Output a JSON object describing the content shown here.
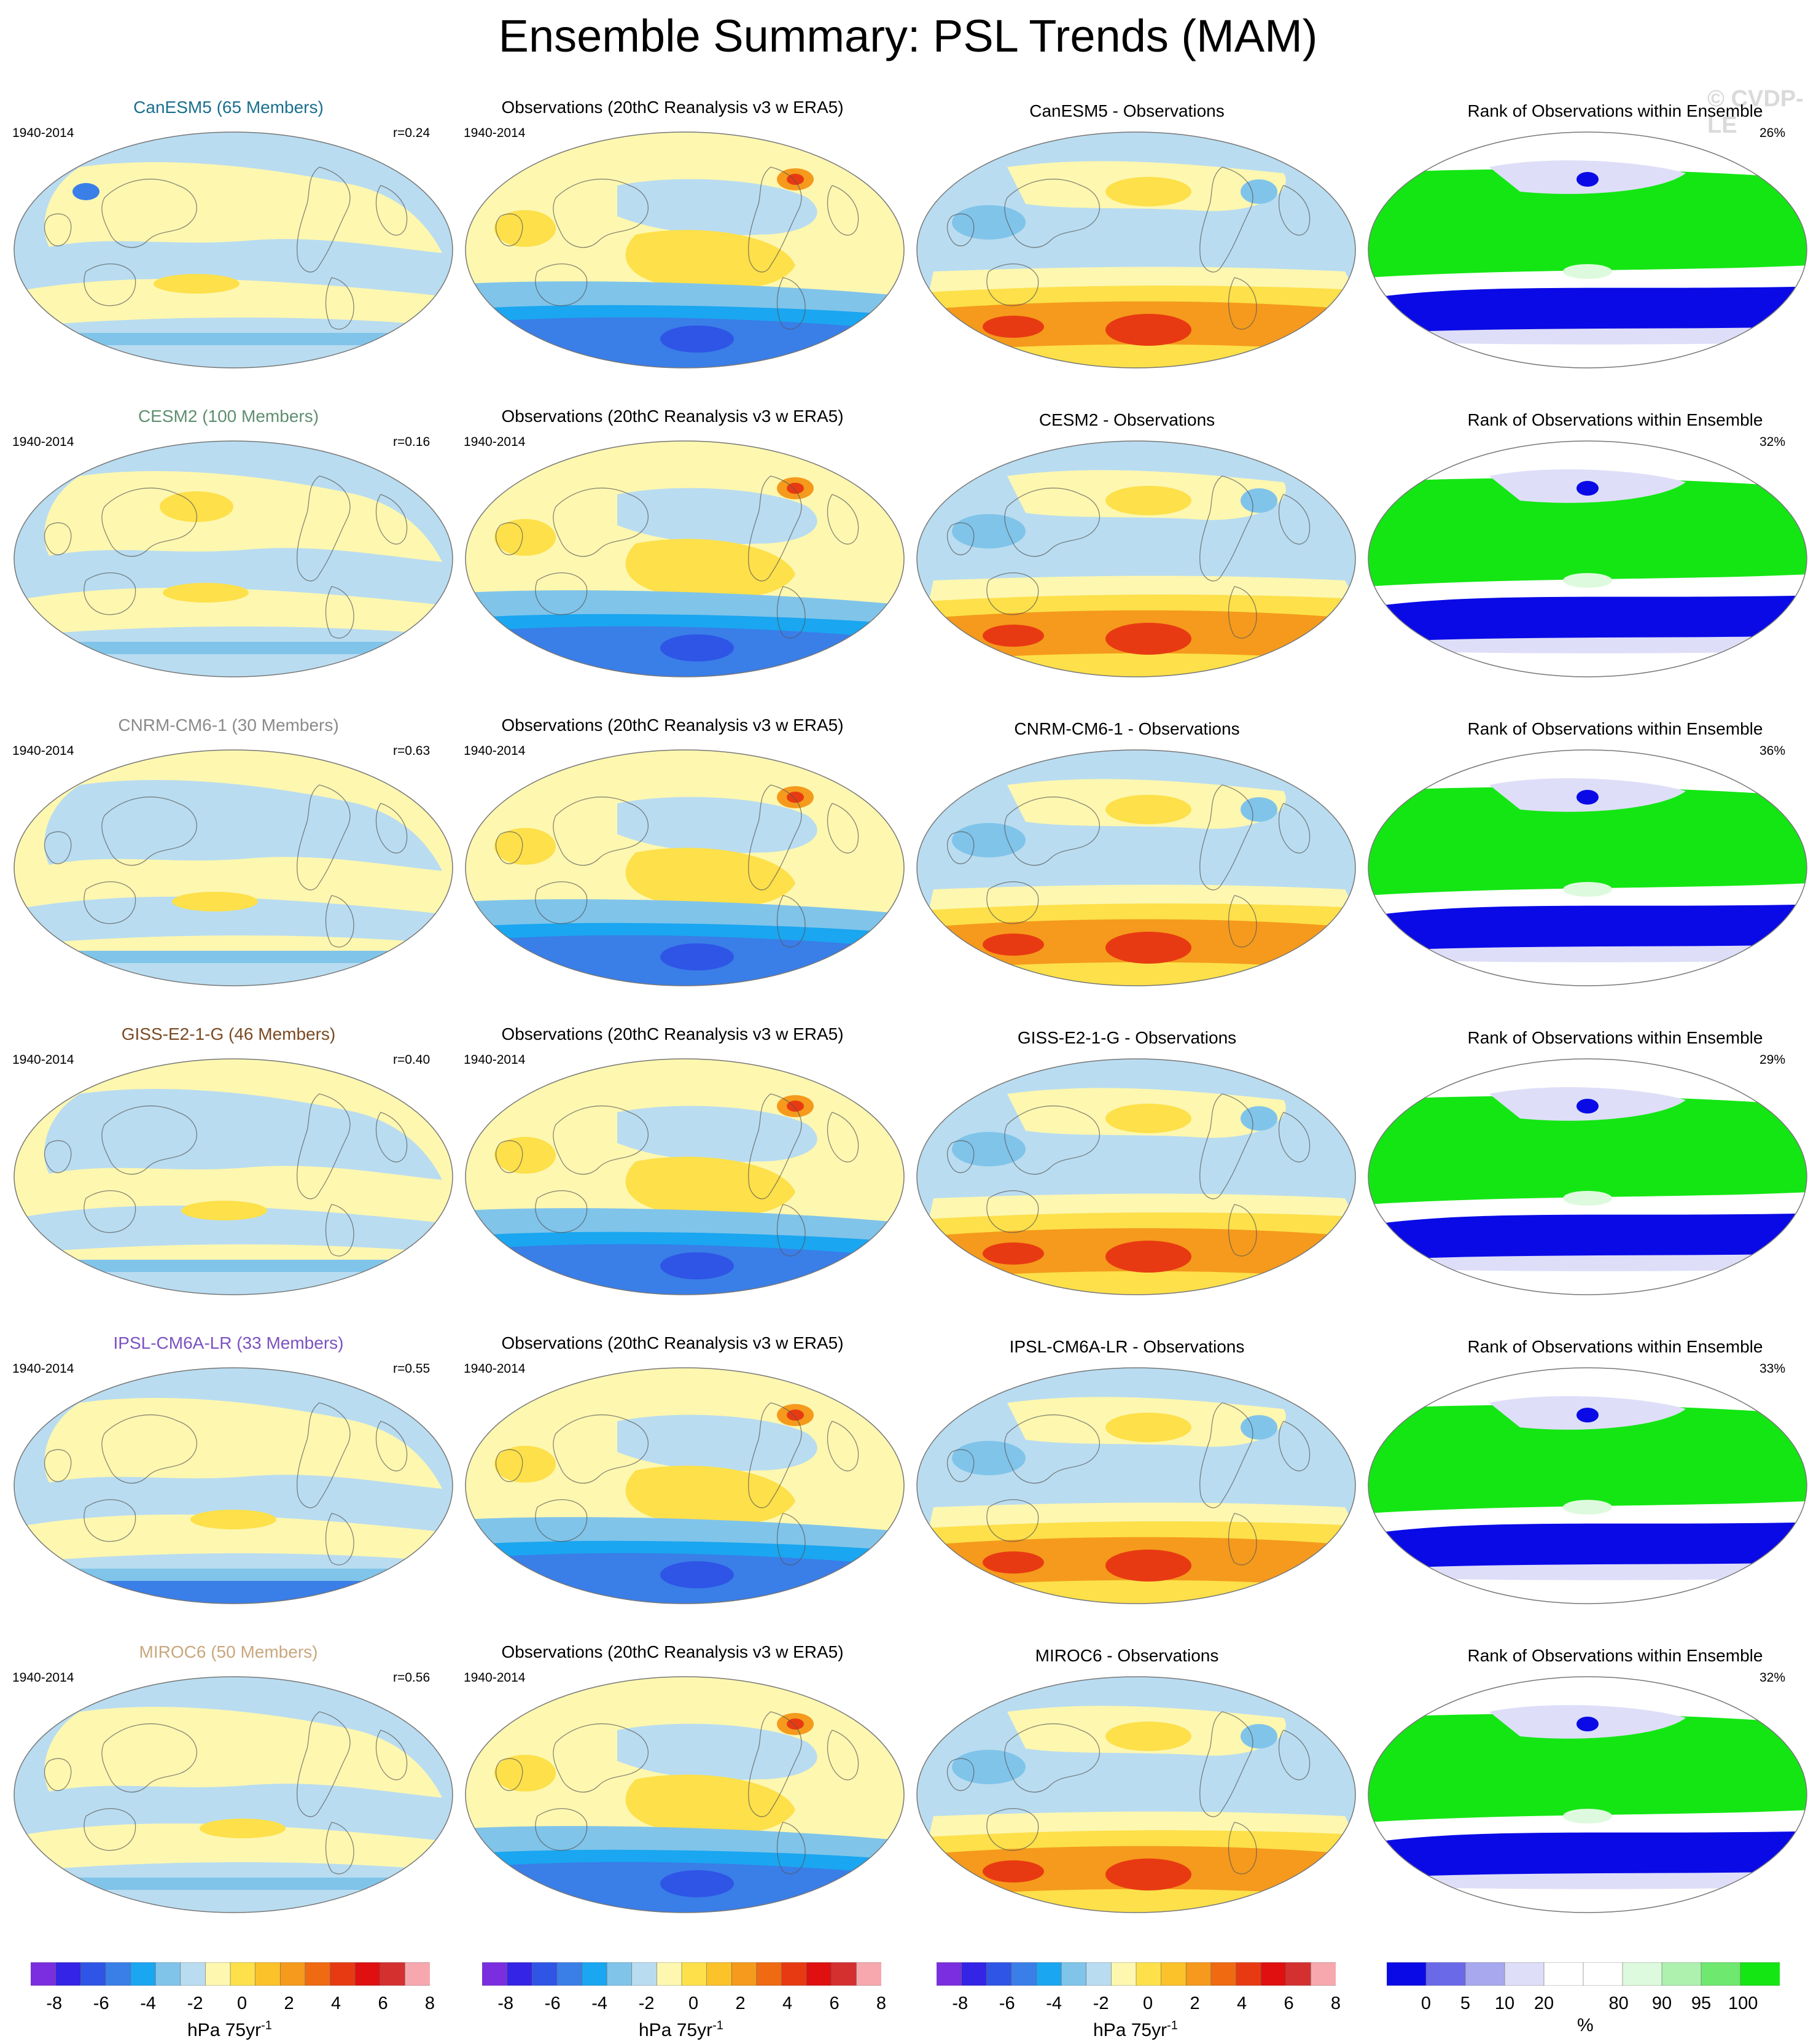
{
  "title": "Ensemble Summary: PSL Trends (MAM)",
  "watermark": "© CVDP-LE",
  "period": "1940-2014",
  "obs_title": "Observations (20thC Reanalysis v3 w ERA5)",
  "rank_title": "Rank of Observations within Ensemble",
  "rows": [
    {
      "model_title": "CanESM5 (65 Members)",
      "color": "#1a6f8f",
      "r": "r=0.24",
      "diff_title": "CanESM5 - Observations",
      "rank_pct": "26%"
    },
    {
      "model_title": "CESM2 (100 Members)",
      "color": "#5f8f6f",
      "r": "r=0.16",
      "diff_title": "CESM2 - Observations",
      "rank_pct": "32%"
    },
    {
      "model_title": "CNRM-CM6-1 (30 Members)",
      "color": "#8a8a8a",
      "r": "r=0.63",
      "diff_title": "CNRM-CM6-1 - Observations",
      "rank_pct": "36%"
    },
    {
      "model_title": "GISS-E2-1-G (46 Members)",
      "color": "#7a4a22",
      "r": "r=0.40",
      "diff_title": "GISS-E2-1-G - Observations",
      "rank_pct": "29%"
    },
    {
      "model_title": "IPSL-CM6A-LR (33 Members)",
      "color": "#7b52c0",
      "r": "r=0.55",
      "diff_title": "IPSL-CM6A-LR - Observations",
      "rank_pct": "33%"
    },
    {
      "model_title": "MIROC6 (50 Members)",
      "color": "#c9a77e",
      "r": "r=0.56",
      "diff_title": "MIROC6 - Observations",
      "rank_pct": "32%"
    }
  ],
  "colorbar_trend": {
    "colors": [
      "#7a2ee0",
      "#3324e6",
      "#2e55e6",
      "#3a7ee8",
      "#1aa6f0",
      "#80c4ea",
      "#b9dcf0",
      "#fdf7b0",
      "#fde04a",
      "#fbc22a",
      "#f59a1c",
      "#f06a12",
      "#e83a12",
      "#e01010",
      "#d43030",
      "#f7a8ae"
    ],
    "labels": [
      "-8",
      "-6",
      "-4",
      "-2",
      "0",
      "2",
      "4",
      "6",
      "8"
    ],
    "units": "hPa 75yr",
    "units_sup": "-1"
  },
  "colorbar_rank": {
    "colors": [
      "#0a0ae6",
      "#6a6ae8",
      "#a8a8ee",
      "#dedef8",
      "#ffffff",
      "#ffffff",
      "#defade",
      "#aef0ae",
      "#6ee86e",
      "#14e614"
    ],
    "labels": [
      "0",
      "5",
      "10",
      "20",
      "80",
      "90",
      "95",
      "100"
    ],
    "units": "%"
  },
  "palette": {
    "ltblue": "#b9dcf0",
    "midblue": "#80c4ea",
    "blue": "#3a7ee8",
    "dkblue": "#2e55e6",
    "yellow": "#fdf7b0",
    "gold": "#fde04a",
    "orange": "#f59a1c",
    "red": "#e83a12",
    "green": "#14e614",
    "ltgreen": "#defade",
    "rankblue": "#0a0ae6",
    "lavender": "#dedef8"
  }
}
